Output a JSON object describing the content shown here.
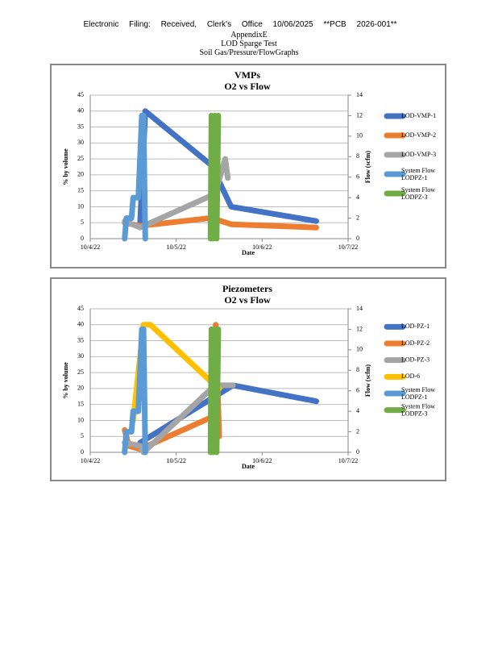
{
  "header": {
    "filing": "Electronic Filing: Received, Clerk's Office 10/06/2025 **PCB 2026-001**",
    "appendix": "AppendixE",
    "test": "LOD Sparge Test",
    "subject": "Soil Gas/Pressure/FlowGraphs"
  },
  "chart_data": [
    {
      "type": "line",
      "title": "VMPs",
      "subtitle": "O2 vs Flow",
      "x_label": "Date",
      "y_label": "% by volume",
      "y2_label": "Flow (scfm)",
      "xlim": [
        0,
        3
      ],
      "xticks": [
        {
          "value": 0,
          "label": "10/4/22"
        },
        {
          "value": 1,
          "label": "10/5/22"
        },
        {
          "value": 2,
          "label": "10/6/22"
        },
        {
          "value": 3,
          "label": "10/7/22"
        }
      ],
      "ylim": [
        0,
        45
      ],
      "yticks": [
        0,
        5,
        10,
        15,
        20,
        25,
        30,
        35,
        40,
        45
      ],
      "y2lim": [
        0,
        14
      ],
      "y2ticks": [
        0,
        2,
        4,
        6,
        8,
        10,
        12,
        14
      ],
      "grid": true,
      "series": [
        {
          "name": "LOD-VMP-1",
          "color": "#4472c4",
          "x": [
            0.58,
            0.64,
            1.41,
            1.64,
            2.63
          ],
          "values": [
            5,
            40,
            23,
            10,
            5.5
          ]
        },
        {
          "name": "LOD-VMP-2",
          "color": "#ed7d31",
          "x": [
            0.4,
            0.58,
            1.41,
            1.64,
            2.63
          ],
          "values": [
            5,
            4,
            6.5,
            4.5,
            3.5
          ]
        },
        {
          "name": "LOD-VMP-3",
          "color": "#a5a5a5",
          "x": [
            0.4,
            0.58,
            1.45,
            1.57,
            1.6
          ],
          "values": [
            5.5,
            3.5,
            14,
            25,
            19
          ]
        },
        {
          "name": "System Flow LODPZ-1",
          "color": "#5b9bd5",
          "axis": "y2",
          "x": [
            0.4,
            0.42,
            0.48,
            0.5,
            0.56,
            0.6,
            0.62,
            0.64
          ],
          "values": [
            0,
            2,
            2,
            4,
            4,
            12,
            12,
            0
          ]
        },
        {
          "name": "System Flow LODPZ-3",
          "color": "#70ad47",
          "axis": "y2",
          "x": [
            1.4,
            1.41,
            1.43,
            1.45,
            1.47,
            1.49
          ],
          "values": [
            0,
            12,
            0,
            12,
            0,
            12
          ]
        }
      ]
    },
    {
      "type": "line",
      "title": "Piezometers",
      "subtitle": "O2 vs Flow",
      "x_label": "Date",
      "y_label": "% by volume",
      "y2_label": "Flow (scfm)",
      "xlim": [
        0,
        3
      ],
      "xticks": [
        {
          "value": 0,
          "label": "10/4/22"
        },
        {
          "value": 1,
          "label": "10/5/22"
        },
        {
          "value": 2,
          "label": "10/6/22"
        },
        {
          "value": 3,
          "label": "10/7/22"
        }
      ],
      "ylim": [
        0,
        45
      ],
      "yticks": [
        0,
        5,
        10,
        15,
        20,
        25,
        30,
        35,
        40,
        45
      ],
      "y2lim": [
        0,
        14
      ],
      "y2ticks": [
        0,
        2,
        4,
        6,
        8,
        10,
        12,
        14
      ],
      "grid": true,
      "series": [
        {
          "name": "LOD-PZ-1",
          "color": "#4472c4",
          "x": [
            0.58,
            1.66,
            2.63
          ],
          "values": [
            3,
            21,
            16
          ]
        },
        {
          "name": "LOD-PZ-2",
          "color": "#ed7d31",
          "x": [
            0.4,
            0.45,
            0.58,
            1.41,
            1.46,
            1.5
          ],
          "values": [
            7,
            2,
            1,
            11,
            40,
            5
          ]
        },
        {
          "name": "LOD-PZ-3",
          "color": "#a5a5a5",
          "x": [
            0.4,
            0.58,
            0.62,
            1.45,
            1.66
          ],
          "values": [
            3,
            2,
            0,
            21,
            21
          ]
        },
        {
          "name": "LOD-6",
          "color": "#ffc000",
          "x": [
            0.5,
            0.62,
            0.7,
            1.45,
            1.5
          ],
          "values": [
            10,
            40,
            40,
            21,
            20
          ]
        },
        {
          "name": "System Flow LODPZ-1",
          "color": "#5b9bd5",
          "axis": "y2",
          "x": [
            0.4,
            0.42,
            0.48,
            0.5,
            0.56,
            0.6,
            0.62,
            0.64
          ],
          "values": [
            0,
            2,
            2,
            4,
            4,
            12,
            12,
            0
          ]
        },
        {
          "name": "System Flow LODPZ-3",
          "color": "#70ad47",
          "axis": "y2",
          "x": [
            1.4,
            1.41,
            1.43,
            1.45,
            1.47,
            1.49
          ],
          "values": [
            0,
            12,
            0,
            12,
            0,
            12
          ]
        }
      ]
    }
  ]
}
